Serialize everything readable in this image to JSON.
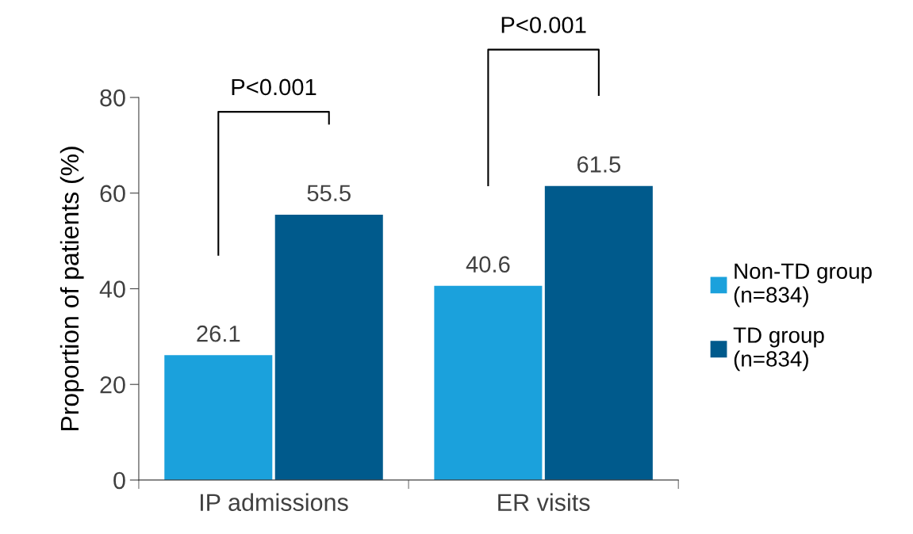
{
  "chart_data": {
    "type": "bar",
    "ylabel": "Proportion of patients (%)",
    "categories": [
      "IP admissions",
      "ER visits"
    ],
    "series": [
      {
        "name": "Non-TD group\n(n=834)",
        "color": "#1ba1dc",
        "values": [
          26.1,
          40.6
        ]
      },
      {
        "name": "TD group\n(n=834)",
        "color": "#005a8c",
        "values": [
          55.5,
          61.5
        ]
      }
    ],
    "ylim": [
      0,
      80
    ],
    "yticks": [
      0,
      20,
      40,
      60,
      80
    ],
    "data_labels": true,
    "grid": false,
    "legend": "right",
    "annotations": [
      "P<0.001",
      "P<0.001"
    ]
  }
}
